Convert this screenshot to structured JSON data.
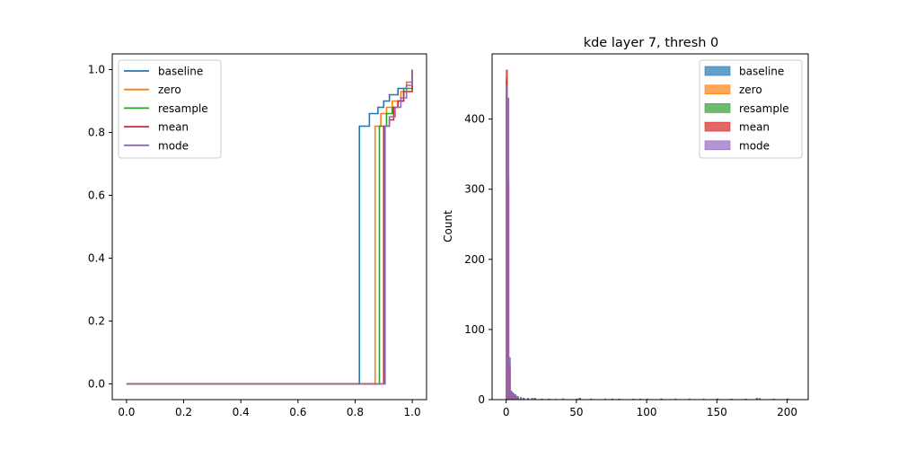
{
  "chart_data": [
    {
      "type": "line",
      "title": "",
      "xlabel": "",
      "ylabel": "",
      "xlim": [
        -0.05,
        1.05
      ],
      "ylim": [
        -0.05,
        1.05
      ],
      "xticks": [
        "0.0",
        "0.2",
        "0.4",
        "0.6",
        "0.8",
        "1.0"
      ],
      "yticks": [
        "0.0",
        "0.2",
        "0.4",
        "0.6",
        "0.8",
        "1.0"
      ],
      "legend_position": "upper-left",
      "series": [
        {
          "name": "baseline",
          "color": "#1f77b4",
          "x": [
            0,
            0.815,
            0.815,
            0.85,
            0.85,
            0.87,
            0.88,
            0.9,
            0.92,
            0.95,
            0.98,
            1.0
          ],
          "y": [
            0,
            0,
            0.82,
            0.82,
            0.86,
            0.86,
            0.88,
            0.9,
            0.92,
            0.94,
            0.96,
            1.0
          ]
        },
        {
          "name": "zero",
          "color": "#ff7f0e",
          "x": [
            0,
            0.87,
            0.87,
            0.89,
            0.89,
            0.91,
            0.93,
            0.96,
            0.98,
            1.0
          ],
          "y": [
            0,
            0,
            0.82,
            0.82,
            0.86,
            0.88,
            0.9,
            0.93,
            0.96,
            1.0
          ]
        },
        {
          "name": "resample",
          "color": "#2ca02c",
          "x": [
            0,
            0.885,
            0.885,
            0.91,
            0.91,
            0.93,
            0.93,
            0.95,
            0.97,
            1.0
          ],
          "y": [
            0,
            0,
            0.82,
            0.82,
            0.86,
            0.86,
            0.88,
            0.9,
            0.94,
            1.0
          ]
        },
        {
          "name": "mean",
          "color": "#d62728",
          "x": [
            0,
            0.9,
            0.9,
            0.92,
            0.92,
            0.935,
            0.935,
            0.95,
            0.97,
            1.0
          ],
          "y": [
            0,
            0,
            0.82,
            0.82,
            0.84,
            0.84,
            0.88,
            0.9,
            0.93,
            1.0
          ]
        },
        {
          "name": "mode",
          "color": "#9467bd",
          "x": [
            0,
            0.905,
            0.905,
            0.92,
            0.92,
            0.94,
            0.96,
            0.98,
            1.0
          ],
          "y": [
            0,
            0,
            0.82,
            0.82,
            0.85,
            0.88,
            0.91,
            0.95,
            1.0
          ]
        }
      ]
    },
    {
      "type": "bar",
      "title": "kde layer 7, thresh 0",
      "xlabel": "",
      "ylabel": "Count",
      "xlim": [
        -10,
        215
      ],
      "ylim": [
        0,
        493
      ],
      "xticks": [
        "0",
        "50",
        "100",
        "150",
        "200"
      ],
      "yticks": [
        "0",
        "100",
        "200",
        "300",
        "400"
      ],
      "legend_position": "upper-right",
      "series": [
        {
          "name": "baseline",
          "color": "#1f77b4",
          "x": [
            0,
            1,
            2,
            3,
            4,
            5,
            6,
            7,
            8,
            10,
            12,
            15,
            18,
            20,
            25,
            30,
            40,
            50,
            60,
            75,
            95,
            110,
            130,
            150,
            170,
            190,
            200
          ],
          "values": [
            445,
            430,
            60,
            12,
            10,
            8,
            7,
            5,
            4,
            3,
            2,
            2,
            2,
            2,
            1,
            1,
            1,
            1,
            1,
            1,
            1,
            1,
            1,
            1,
            1,
            1,
            1
          ]
        },
        {
          "name": "zero",
          "color": "#ff7f0e",
          "x": [
            0,
            1,
            2,
            3,
            4,
            5,
            6,
            8,
            12,
            20,
            35,
            52,
            70,
            100,
            140,
            180,
            200
          ],
          "values": [
            460,
            300,
            40,
            10,
            8,
            6,
            5,
            3,
            2,
            2,
            1,
            2,
            1,
            1,
            1,
            2,
            1
          ]
        },
        {
          "name": "resample",
          "color": "#2ca02c",
          "x": [
            0,
            1,
            2,
            3,
            4,
            5,
            6,
            8,
            12,
            20,
            40,
            60,
            90,
            120,
            160,
            200
          ],
          "values": [
            455,
            320,
            45,
            11,
            9,
            7,
            5,
            3,
            2,
            2,
            1,
            1,
            1,
            1,
            1,
            1
          ]
        },
        {
          "name": "mean",
          "color": "#d62728",
          "x": [
            0,
            1,
            2,
            3,
            4,
            5,
            6,
            8,
            12,
            20,
            40,
            52,
            80,
            110,
            150,
            178,
            200
          ],
          "values": [
            470,
            310,
            50,
            12,
            9,
            7,
            5,
            3,
            2,
            2,
            1,
            2,
            1,
            1,
            1,
            2,
            1
          ]
        },
        {
          "name": "mode",
          "color": "#9467bd",
          "x": [
            0,
            1,
            2,
            3,
            4,
            5,
            6,
            8,
            12,
            20,
            40,
            70,
            100,
            140,
            180,
            200
          ],
          "values": [
            448,
            428,
            55,
            11,
            9,
            7,
            5,
            3,
            2,
            2,
            1,
            1,
            1,
            1,
            1,
            1
          ]
        }
      ]
    }
  ]
}
